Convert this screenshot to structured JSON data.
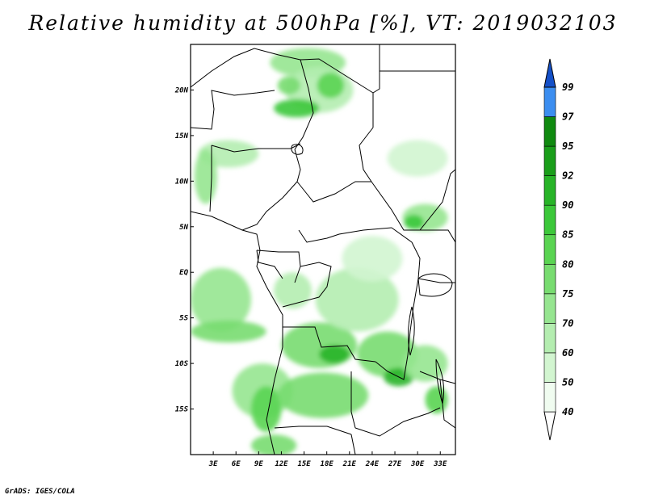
{
  "title": "Relative humidity at 500hPa [%], VT: 2019032103",
  "footer": "GrADS: IGES/COLA",
  "map": {
    "lon_range": [
      0,
      35
    ],
    "lat_range": [
      -20,
      25
    ],
    "lat_ticks": [
      {
        "label": "20N",
        "lat": 20
      },
      {
        "label": "15N",
        "lat": 15
      },
      {
        "label": "10N",
        "lat": 10
      },
      {
        "label": "5N",
        "lat": 5
      },
      {
        "label": "EQ",
        "lat": 0
      },
      {
        "label": "5S",
        "lat": -5
      },
      {
        "label": "10S",
        "lat": -10
      },
      {
        "label": "15S",
        "lat": -15
      }
    ],
    "lon_ticks": [
      {
        "label": "3E",
        "lon": 3
      },
      {
        "label": "6E",
        "lon": 6
      },
      {
        "label": "9E",
        "lon": 9
      },
      {
        "label": "12E",
        "lon": 12
      },
      {
        "label": "15E",
        "lon": 15
      },
      {
        "label": "18E",
        "lon": 18
      },
      {
        "label": "21E",
        "lon": 21
      },
      {
        "label": "24E",
        "lon": 24
      },
      {
        "label": "27E",
        "lon": 27
      },
      {
        "label": "30E",
        "lon": 30
      },
      {
        "label": "33E",
        "lon": 33
      }
    ]
  },
  "colorbar": {
    "levels": [
      {
        "label": "40",
        "color": "#f0fcf0"
      },
      {
        "label": "50",
        "color": "#d2f5d0"
      },
      {
        "label": "60",
        "color": "#b4edb0"
      },
      {
        "label": "70",
        "color": "#96e590"
      },
      {
        "label": "75",
        "color": "#78dc70"
      },
      {
        "label": "80",
        "color": "#5ad452"
      },
      {
        "label": "85",
        "color": "#3cc83a"
      },
      {
        "label": "90",
        "color": "#28b428"
      },
      {
        "label": "92",
        "color": "#1a9e1a"
      },
      {
        "label": "95",
        "color": "#108a10"
      },
      {
        "label": "97",
        "color": "#3c8ef0"
      },
      {
        "label": "99",
        "color": "#1e6ee0"
      }
    ],
    "low_color": "#ffffff",
    "high_color": "#1450c8"
  },
  "humidity_blobs": [
    {
      "lon": 15.5,
      "lat": 23.0,
      "rx": 5.0,
      "ry": 1.6,
      "level": 3
    },
    {
      "lon": 17.0,
      "lat": 20.0,
      "rx": 4.5,
      "ry": 2.5,
      "level": 2
    },
    {
      "lon": 14.0,
      "lat": 18.0,
      "rx": 3.0,
      "ry": 1.0,
      "level": 6
    },
    {
      "lon": 18.5,
      "lat": 20.5,
      "rx": 1.8,
      "ry": 1.4,
      "level": 5
    },
    {
      "lon": 13.0,
      "lat": 20.5,
      "rx": 1.5,
      "ry": 1.0,
      "level": 4
    },
    {
      "lon": 5.0,
      "lat": 13.0,
      "rx": 4.0,
      "ry": 1.5,
      "level": 2
    },
    {
      "lon": 2.0,
      "lat": 10.5,
      "rx": 1.5,
      "ry": 3.0,
      "level": 3
    },
    {
      "lon": 31.0,
      "lat": 6.0,
      "rx": 3.0,
      "ry": 1.5,
      "level": 3
    },
    {
      "lon": 29.5,
      "lat": 5.5,
      "rx": 1.3,
      "ry": 0.8,
      "level": 6
    },
    {
      "lon": 4.0,
      "lat": -3.0,
      "rx": 4.0,
      "ry": 3.5,
      "level": 3
    },
    {
      "lon": 5.0,
      "lat": -6.5,
      "rx": 5.0,
      "ry": 1.2,
      "level": 4
    },
    {
      "lon": 9.5,
      "lat": -13.0,
      "rx": 4.0,
      "ry": 3.0,
      "level": 3
    },
    {
      "lon": 10.0,
      "lat": -15.0,
      "rx": 2.0,
      "ry": 2.5,
      "level": 5
    },
    {
      "lon": 11.0,
      "lat": -19.0,
      "rx": 3.0,
      "ry": 1.2,
      "level": 4
    },
    {
      "lon": 17.0,
      "lat": -8.0,
      "rx": 5.0,
      "ry": 2.5,
      "level": 4
    },
    {
      "lon": 19.0,
      "lat": -9.0,
      "rx": 2.0,
      "ry": 1.0,
      "level": 7
    },
    {
      "lon": 17.5,
      "lat": -13.5,
      "rx": 6.0,
      "ry": 2.5,
      "level": 4
    },
    {
      "lon": 26.0,
      "lat": -9.0,
      "rx": 4.0,
      "ry": 2.5,
      "level": 4
    },
    {
      "lon": 27.5,
      "lat": -11.5,
      "rx": 2.0,
      "ry": 1.0,
      "level": 7
    },
    {
      "lon": 22.0,
      "lat": -3.0,
      "rx": 5.5,
      "ry": 3.5,
      "level": 2
    },
    {
      "lon": 24.0,
      "lat": 1.5,
      "rx": 4.0,
      "ry": 2.5,
      "level": 1
    },
    {
      "lon": 31.0,
      "lat": -10.0,
      "rx": 3.0,
      "ry": 2.0,
      "level": 3
    },
    {
      "lon": 32.5,
      "lat": -14.0,
      "rx": 1.5,
      "ry": 1.5,
      "level": 5
    },
    {
      "lon": 13.5,
      "lat": -2.0,
      "rx": 2.5,
      "ry": 2.0,
      "level": 2
    },
    {
      "lon": 30.0,
      "lat": 12.5,
      "rx": 4.0,
      "ry": 2.0,
      "level": 1
    }
  ]
}
